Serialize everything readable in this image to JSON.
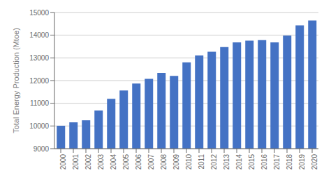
{
  "chart_data": {
    "type": "bar",
    "categories": [
      "2000",
      "2001",
      "2002",
      "2003",
      "2004",
      "2005",
      "2006",
      "2007",
      "2008",
      "2009",
      "2010",
      "2011",
      "2012",
      "2013",
      "2014",
      "2015",
      "2016",
      "2017",
      "2018",
      "2019",
      "2020"
    ],
    "values": [
      10010,
      10160,
      10250,
      10680,
      11200,
      11560,
      11870,
      12080,
      12340,
      12210,
      12800,
      13110,
      13270,
      13480,
      13680,
      13760,
      13780,
      13680,
      13980,
      14430,
      14650
    ],
    "color": "#4472c4",
    "ylim": [
      9000,
      15000
    ],
    "yticks": [
      9000,
      10000,
      11000,
      12000,
      13000,
      14000,
      15000
    ],
    "ylabel": "Total Energy Production (Mtoe)",
    "grid": true
  }
}
